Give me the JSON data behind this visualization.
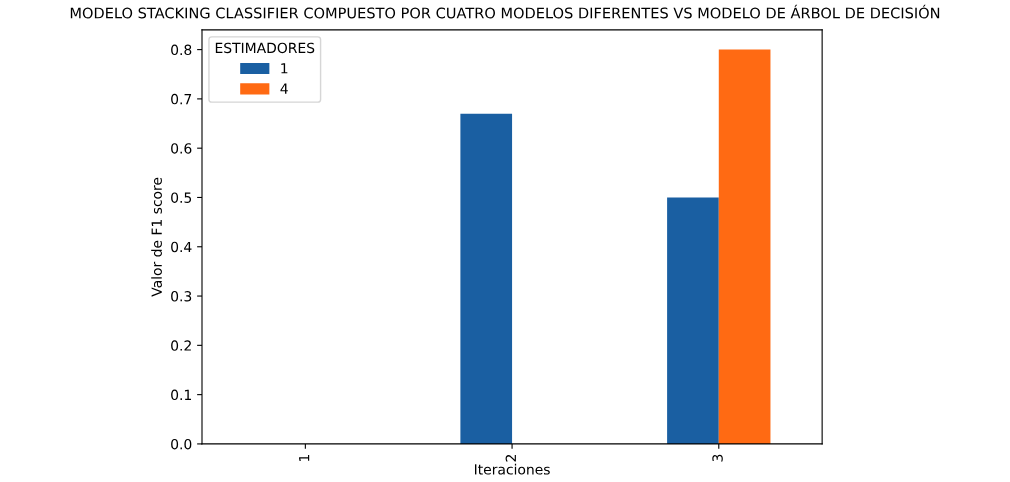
{
  "chart_data": {
    "type": "bar",
    "title": "MODELO STACKING CLASSIFIER COMPUESTO POR CUATRO MODELOS DIFERENTES VS MODELO DE ÁRBOL DE DECISIÓN",
    "xlabel": "Iteraciones",
    "ylabel": "Valor de F1 score",
    "legend_title": "ESTIMADORES",
    "categories": [
      "1",
      "2",
      "3"
    ],
    "series": [
      {
        "name": "1",
        "color": "#1a5fa2",
        "values": [
          0,
          0.67,
          0.5
        ]
      },
      {
        "name": "4",
        "color": "#ff6a13",
        "values": [
          0,
          0,
          0.8
        ]
      }
    ],
    "ylim": [
      0,
      0.84
    ],
    "yticks": [
      {
        "value": 0,
        "label": "0.0"
      },
      0.1,
      0.2,
      0.3,
      0.4,
      0.5,
      0.6,
      0.7,
      0.8
    ],
    "grid": false,
    "legend": "top left"
  }
}
